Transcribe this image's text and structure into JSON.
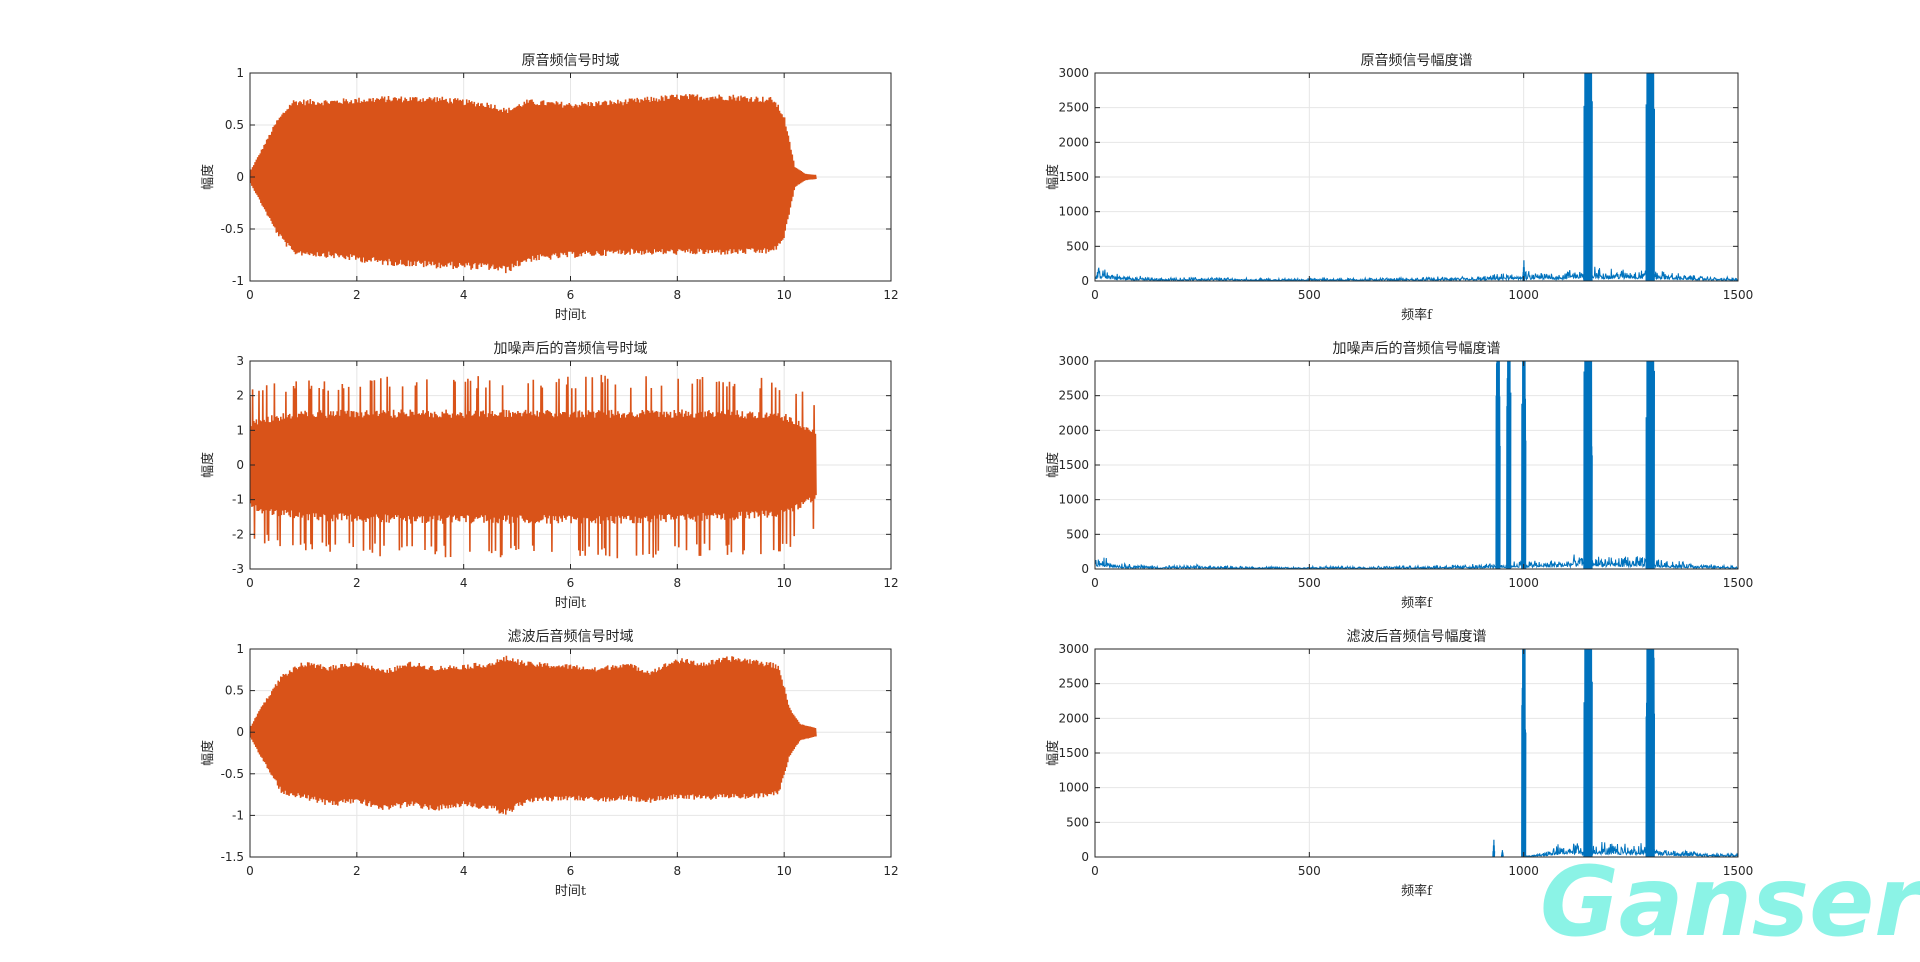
{
  "chart_data": [
    {
      "type": "line",
      "panel": "time",
      "signal": "original",
      "title": "原音频信号时域",
      "xlabel": "时间t",
      "ylabel": "幅度",
      "xlim": [
        0,
        12
      ],
      "ylim": [
        -1,
        1
      ],
      "xticks": [
        0,
        2,
        4,
        6,
        8,
        10,
        12
      ],
      "yticks": [
        -1,
        -0.5,
        0,
        0.5,
        1
      ],
      "grid": true,
      "series": [
        {
          "color": "#d95319",
          "envelope_x": [
            0,
            0.2,
            0.5,
            0.8,
            1.5,
            2.5,
            3.5,
            4.5,
            4.8,
            5.2,
            6.0,
            7.0,
            8.0,
            9.0,
            9.8,
            10.0,
            10.2,
            10.4,
            10.6
          ],
          "envelope_upper": [
            0.05,
            0.25,
            0.55,
            0.75,
            0.75,
            0.78,
            0.78,
            0.72,
            0.66,
            0.75,
            0.72,
            0.75,
            0.8,
            0.8,
            0.77,
            0.6,
            0.1,
            0.03,
            0.02
          ],
          "envelope_lower": [
            -0.05,
            -0.25,
            -0.55,
            -0.75,
            -0.78,
            -0.85,
            -0.88,
            -0.9,
            -0.93,
            -0.82,
            -0.78,
            -0.75,
            -0.75,
            -0.75,
            -0.74,
            -0.6,
            -0.1,
            -0.03,
            -0.02
          ]
        }
      ]
    },
    {
      "type": "line",
      "panel": "spectrum",
      "signal": "original",
      "title": "原音频信号幅度谱",
      "xlabel": "频率f",
      "ylabel": "幅度",
      "xlim": [
        0,
        1500
      ],
      "ylim": [
        0,
        3000
      ],
      "xticks": [
        0,
        500,
        1000,
        1500
      ],
      "yticks": [
        0,
        500,
        1000,
        1500,
        2000,
        2500,
        3000
      ],
      "grid": true,
      "series": [
        {
          "color": "#0072bd",
          "noise_x": [
            0,
            20,
            60,
            150,
            250,
            400,
            700,
            900,
            1000,
            1050,
            1100,
            1140,
            1200,
            1280,
            1350,
            1420,
            1500
          ],
          "noise_level": [
            150,
            160,
            80,
            40,
            50,
            30,
            40,
            60,
            120,
            110,
            130,
            200,
            150,
            160,
            100,
            60,
            40
          ],
          "peaks": [
            {
              "x": 1000,
              "y": 300
            },
            {
              "x": 1145,
              "y": 3000
            },
            {
              "x": 1150,
              "y": 3000
            },
            {
              "x": 1155,
              "y": 3000
            },
            {
              "x": 1290,
              "y": 3000
            },
            {
              "x": 1295,
              "y": 3000
            },
            {
              "x": 1300,
              "y": 3000
            }
          ]
        }
      ]
    },
    {
      "type": "line",
      "panel": "time",
      "signal": "noisy",
      "title": "加噪声后的音频信号时域",
      "xlabel": "时间t",
      "ylabel": "幅度",
      "xlim": [
        0,
        12
      ],
      "ylim": [
        -3,
        3
      ],
      "xticks": [
        0,
        2,
        4,
        6,
        8,
        10,
        12
      ],
      "yticks": [
        -3,
        -2,
        -1,
        0,
        1,
        2,
        3
      ],
      "grid": true,
      "series": [
        {
          "color": "#d95319",
          "envelope_x": [
            0,
            0.2,
            1,
            3,
            5,
            7,
            9,
            10,
            10.6
          ],
          "envelope_upper": [
            2.2,
            2.3,
            2.5,
            2.6,
            2.6,
            2.6,
            2.6,
            2.5,
            2.0
          ],
          "envelope_lower": [
            -2.2,
            -2.3,
            -2.5,
            -2.7,
            -2.7,
            -2.7,
            -2.6,
            -2.6,
            -2.0
          ],
          "core_upper": [
            1.2,
            1.4,
            1.6,
            1.6,
            1.6,
            1.6,
            1.6,
            1.5,
            1.0
          ],
          "core_lower": [
            -1.2,
            -1.4,
            -1.6,
            -1.7,
            -1.7,
            -1.7,
            -1.6,
            -1.5,
            -1.0
          ]
        }
      ]
    },
    {
      "type": "line",
      "panel": "spectrum",
      "signal": "noisy",
      "title": "加噪声后的音频信号幅度谱",
      "xlabel": "频率f",
      "ylabel": "幅度",
      "xlim": [
        0,
        1500
      ],
      "ylim": [
        0,
        3000
      ],
      "xticks": [
        0,
        500,
        1000,
        1500
      ],
      "yticks": [
        0,
        500,
        1000,
        1500,
        2000,
        2500,
        3000
      ],
      "grid": true,
      "series": [
        {
          "color": "#0072bd",
          "noise_x": [
            0,
            20,
            60,
            150,
            250,
            400,
            700,
            900,
            1000,
            1050,
            1100,
            1140,
            1200,
            1280,
            1350,
            1420,
            1500
          ],
          "noise_level": [
            150,
            160,
            80,
            40,
            50,
            30,
            40,
            60,
            120,
            110,
            130,
            200,
            150,
            160,
            100,
            60,
            40
          ],
          "peaks": [
            {
              "x": 940,
              "y": 3000
            },
            {
              "x": 965,
              "y": 3000
            },
            {
              "x": 1000,
              "y": 3000
            },
            {
              "x": 1145,
              "y": 3000
            },
            {
              "x": 1150,
              "y": 3000
            },
            {
              "x": 1155,
              "y": 3000
            },
            {
              "x": 1290,
              "y": 3000
            },
            {
              "x": 1295,
              "y": 3000
            },
            {
              "x": 1300,
              "y": 3000
            }
          ]
        }
      ]
    },
    {
      "type": "line",
      "panel": "time",
      "signal": "filtered",
      "title": "滤波后音频信号时域",
      "xlabel": "时间t",
      "ylabel": "幅度",
      "xlim": [
        0,
        12
      ],
      "ylim": [
        -1.5,
        1
      ],
      "xticks": [
        0,
        2,
        4,
        6,
        8,
        10,
        12
      ],
      "yticks": [
        -1.5,
        -1,
        -0.5,
        0,
        0.5,
        1
      ],
      "grid": true,
      "series": [
        {
          "color": "#d95319",
          "envelope_x": [
            0,
            0.2,
            0.6,
            1.0,
            1.5,
            2.0,
            2.5,
            3.0,
            3.5,
            4.0,
            4.5,
            4.8,
            5.2,
            6.0,
            6.5,
            7.0,
            7.5,
            8.0,
            8.5,
            9.0,
            9.5,
            9.9,
            10.1,
            10.3,
            10.6
          ],
          "envelope_upper": [
            0.05,
            0.3,
            0.7,
            0.85,
            0.8,
            0.87,
            0.75,
            0.85,
            0.8,
            0.82,
            0.85,
            0.92,
            0.85,
            0.82,
            0.78,
            0.85,
            0.75,
            0.9,
            0.85,
            0.92,
            0.88,
            0.82,
            0.3,
            0.1,
            0.05
          ],
          "envelope_lower": [
            -0.05,
            -0.3,
            -0.75,
            -0.8,
            -0.9,
            -0.85,
            -0.95,
            -0.9,
            -0.95,
            -0.9,
            -0.95,
            -1.0,
            -0.85,
            -0.82,
            -0.85,
            -0.82,
            -0.85,
            -0.8,
            -0.82,
            -0.8,
            -0.8,
            -0.75,
            -0.3,
            -0.1,
            -0.05
          ]
        }
      ]
    },
    {
      "type": "line",
      "panel": "spectrum",
      "signal": "filtered",
      "title": "滤波后音频信号幅度谱",
      "xlabel": "频率f",
      "ylabel": "幅度",
      "xlim": [
        0,
        1500
      ],
      "ylim": [
        0,
        3000
      ],
      "xticks": [
        0,
        500,
        1000,
        1500
      ],
      "yticks": [
        0,
        500,
        1000,
        1500,
        2000,
        2500,
        3000
      ],
      "grid": true,
      "series": [
        {
          "color": "#0072bd",
          "noise_x": [
            0,
            900,
            1000,
            1010,
            1040,
            1080,
            1120,
            1200,
            1280,
            1350,
            1420,
            1500
          ],
          "noise_level": [
            0,
            0,
            0,
            20,
            60,
            150,
            200,
            180,
            170,
            100,
            60,
            40
          ],
          "peaks": [
            {
              "x": 930,
              "y": 250
            },
            {
              "x": 950,
              "y": 100
            },
            {
              "x": 1000,
              "y": 3000
            },
            {
              "x": 1145,
              "y": 3000
            },
            {
              "x": 1150,
              "y": 3000
            },
            {
              "x": 1155,
              "y": 3000
            },
            {
              "x": 1290,
              "y": 3000
            },
            {
              "x": 1295,
              "y": 3000
            },
            {
              "x": 1300,
              "y": 3000
            }
          ]
        }
      ]
    }
  ],
  "watermark": {
    "text": "Ganser",
    "color": "#7ff2e4"
  }
}
